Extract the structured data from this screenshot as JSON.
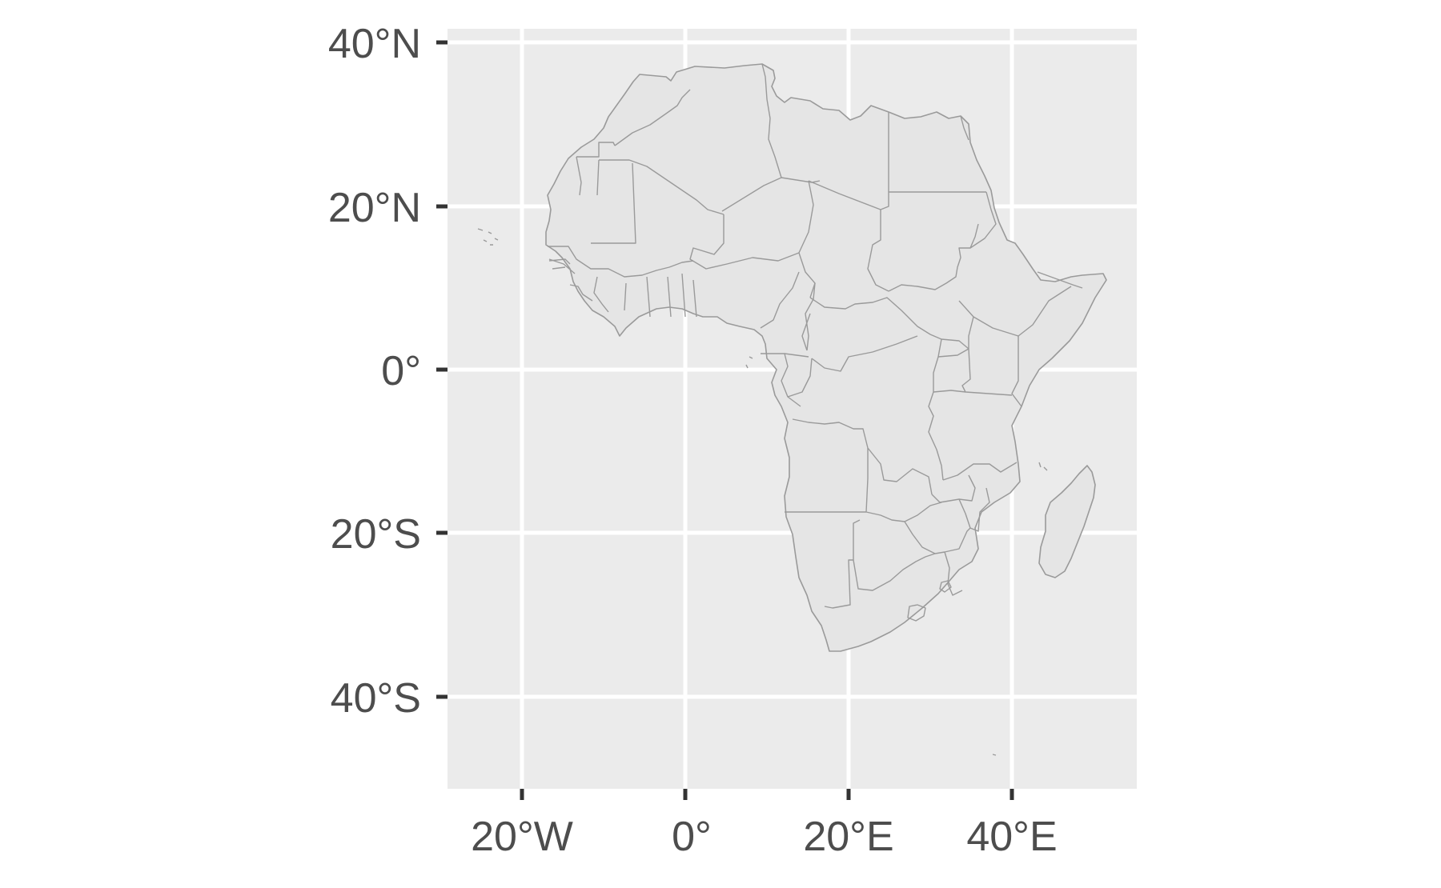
{
  "map": {
    "region": "Africa",
    "colors": {
      "panel_background": "#ebebeb",
      "gridline": "#ffffff",
      "land_fill": "#e5e5e5",
      "border": "#9a9a9a",
      "tick_text": "#4d4d4d",
      "tick_mark": "#333333"
    },
    "x_axis": {
      "range_deg": [
        -29,
        55.5
      ],
      "ticks": [
        {
          "value": -20,
          "label": "20°W"
        },
        {
          "value": 0,
          "label": "0°"
        },
        {
          "value": 20,
          "label": "20°E"
        },
        {
          "value": 40,
          "label": "40°E"
        }
      ]
    },
    "y_axis": {
      "range_deg": [
        -51.5,
        41.5
      ],
      "ticks": [
        {
          "value": 40,
          "label": "40°N"
        },
        {
          "value": 20,
          "label": "20°N"
        },
        {
          "value": 0,
          "label": "0°"
        },
        {
          "value": -20,
          "label": "20°S"
        },
        {
          "value": -40,
          "label": "40°S"
        }
      ]
    },
    "grid": true
  }
}
